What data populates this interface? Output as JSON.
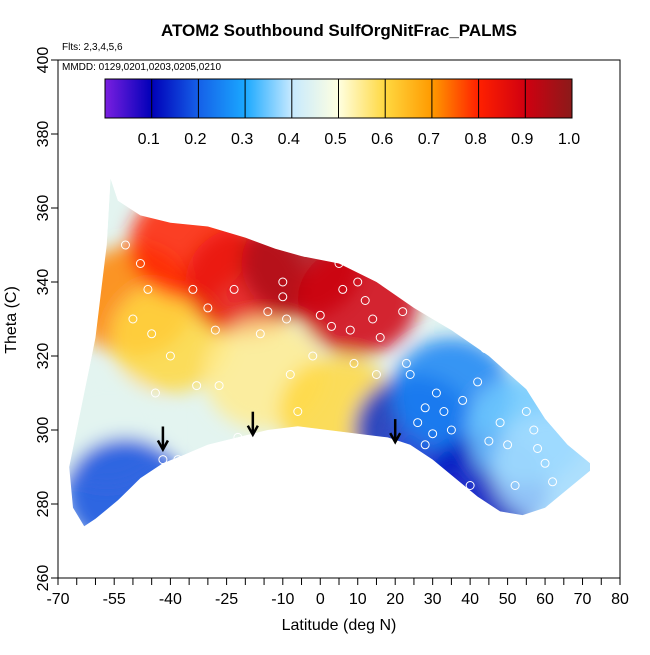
{
  "chart_data": {
    "type": "heatmap",
    "title": "ATOM2 Southbound SulfOrgNitFrac_PALMS",
    "flights_note": "Flts: 2,3,4,5,6",
    "dates_note": "MMDD: 0129,0201,0203,0205,0210",
    "xlabel": "Latitude (deg N)",
    "ylabel": "Theta (C)",
    "xlim": [
      -70,
      80
    ],
    "ylim": [
      260,
      400
    ],
    "x_ticks_labeled": [
      -70,
      -55,
      -40,
      -25,
      -10,
      0,
      10,
      20,
      30,
      40,
      50,
      60,
      70,
      80
    ],
    "x_ticks_minor": [
      -65,
      -60,
      -50,
      -45,
      -35,
      -30,
      -20,
      -15,
      -5,
      5,
      15,
      25,
      35,
      45,
      55,
      65,
      75
    ],
    "y_ticks": [
      260,
      280,
      300,
      320,
      340,
      360,
      380,
      400
    ],
    "colorbar": {
      "range": [
        0.0,
        1.0
      ],
      "tick_labels": [
        "0.1",
        "0.2",
        "0.3",
        "0.4",
        "0.5",
        "0.6",
        "0.7",
        "0.8",
        "0.9",
        "1.0"
      ],
      "tick_values": [
        0.1,
        0.2,
        0.3,
        0.4,
        0.5,
        0.6,
        0.7,
        0.8,
        0.9,
        1.0
      ],
      "colors": [
        "#7a1fe0",
        "#0000b8",
        "#1560e8",
        "#1aa8ff",
        "#c6e9ff",
        "#ffffe0",
        "#ffd840",
        "#ff9a00",
        "#ff2000",
        "#d00010",
        "#8b1a1a"
      ]
    },
    "regions": [
      {
        "lat": -57,
        "theta": 300,
        "value": 0.45
      },
      {
        "lat": -52,
        "theta": 283,
        "value": 0.18
      },
      {
        "lat": -50,
        "theta": 335,
        "value": 0.72
      },
      {
        "lat": -40,
        "theta": 325,
        "value": 0.6
      },
      {
        "lat": -35,
        "theta": 350,
        "value": 0.8
      },
      {
        "lat": -20,
        "theta": 340,
        "value": 0.85
      },
      {
        "lat": -15,
        "theta": 315,
        "value": 0.55
      },
      {
        "lat": -5,
        "theta": 345,
        "value": 0.95
      },
      {
        "lat": 10,
        "theta": 335,
        "value": 0.9
      },
      {
        "lat": 5,
        "theta": 305,
        "value": 0.6
      },
      {
        "lat": 25,
        "theta": 300,
        "value": 0.15
      },
      {
        "lat": 35,
        "theta": 310,
        "value": 0.25
      },
      {
        "lat": 45,
        "theta": 285,
        "value": 0.12
      },
      {
        "lat": 55,
        "theta": 300,
        "value": 0.35
      },
      {
        "lat": 62,
        "theta": 290,
        "value": 0.38
      }
    ],
    "arrows_lat": [
      -42,
      -18,
      20
    ],
    "arrows_theta": [
      295,
      299,
      297
    ],
    "sample_points": [
      [
        -52,
        350
      ],
      [
        -48,
        345
      ],
      [
        -46,
        338
      ],
      [
        -50,
        330
      ],
      [
        -45,
        326
      ],
      [
        -40,
        320
      ],
      [
        -44,
        310
      ],
      [
        -42,
        292
      ],
      [
        -38,
        292
      ],
      [
        -34,
        338
      ],
      [
        -30,
        333
      ],
      [
        -28,
        327
      ],
      [
        -27,
        312
      ],
      [
        -33,
        312
      ],
      [
        -23,
        338
      ],
      [
        -22,
        298
      ],
      [
        -10,
        350
      ],
      [
        -10,
        340
      ],
      [
        -10,
        336
      ],
      [
        -9,
        330
      ],
      [
        -8,
        315
      ],
      [
        -6,
        305
      ],
      [
        -4,
        348
      ],
      [
        -2,
        320
      ],
      [
        2,
        348
      ],
      [
        3,
        350
      ],
      [
        5,
        345
      ],
      [
        6,
        338
      ],
      [
        8,
        327
      ],
      [
        9,
        318
      ],
      [
        10,
        340
      ],
      [
        12,
        335
      ],
      [
        14,
        330
      ],
      [
        16,
        325
      ],
      [
        18,
        348
      ],
      [
        19,
        345
      ],
      [
        20,
        350
      ],
      [
        22,
        332
      ],
      [
        23,
        318
      ],
      [
        24,
        315
      ],
      [
        26,
        302
      ],
      [
        28,
        296
      ],
      [
        31,
        310
      ],
      [
        33,
        305
      ],
      [
        35,
        300
      ],
      [
        38,
        308
      ],
      [
        42,
        313
      ],
      [
        45,
        297
      ],
      [
        48,
        302
      ],
      [
        50,
        296
      ],
      [
        52,
        285
      ],
      [
        55,
        305
      ],
      [
        57,
        300
      ],
      [
        58,
        295
      ],
      [
        60,
        291
      ],
      [
        62,
        286
      ],
      [
        44,
        322
      ],
      [
        28,
        306
      ],
      [
        30,
        299
      ],
      [
        36,
        280
      ],
      [
        40,
        285
      ],
      [
        15,
        315
      ],
      [
        3,
        328
      ],
      [
        0,
        331
      ],
      [
        -14,
        332
      ],
      [
        -16,
        326
      ]
    ]
  }
}
